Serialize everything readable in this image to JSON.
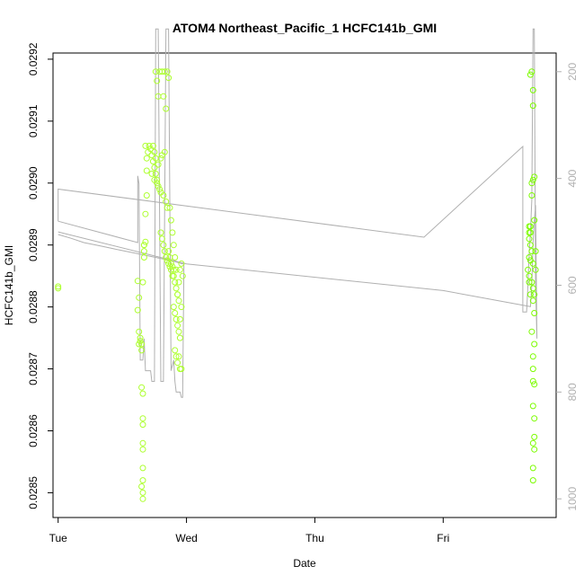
{
  "chart_data": {
    "type": "scatter",
    "title": "ATOM4 Northeast_Pacific_1 HCFC141b_GMI",
    "xlabel": "Date",
    "ylabel": "HCFC141b_GMI",
    "x_tick_labels": [
      "Tue",
      "Wed",
      "Thu",
      "Fri"
    ],
    "x_tick_values": [
      0,
      1,
      2,
      3
    ],
    "xlim": [
      -0.04,
      3.88
    ],
    "ylim": [
      0.02846,
      0.02921
    ],
    "y_ticks": [
      0.0285,
      0.0286,
      0.0287,
      0.0288,
      0.0289,
      0.029,
      0.0291,
      0.0292
    ],
    "right_axis": {
      "ylim": [
        1035,
        165
      ],
      "ticks": [
        200,
        400,
        600,
        800,
        1000
      ],
      "color": "#b0b0b0"
    },
    "colors": {
      "points": "#adff2f",
      "points_late": "#7cfc00",
      "line": "#b0b0b0",
      "axis": "#000000"
    },
    "grid": false,
    "series": [
      {
        "type": "points",
        "points": [
          [
            0.0,
            0.02883
          ],
          [
            0.0,
            0.028833
          ],
          [
            0.62,
            0.028842
          ],
          [
            0.62,
            0.028795
          ],
          [
            0.63,
            0.02876
          ],
          [
            0.64,
            0.02875
          ],
          [
            0.64,
            0.028745
          ],
          [
            0.63,
            0.02874
          ],
          [
            0.65,
            0.02873
          ],
          [
            0.65,
            0.02874
          ],
          [
            0.63,
            0.028815
          ],
          [
            0.66,
            0.02884
          ],
          [
            0.65,
            0.02867
          ],
          [
            0.66,
            0.02866
          ],
          [
            0.66,
            0.02862
          ],
          [
            0.66,
            0.02861
          ],
          [
            0.66,
            0.02858
          ],
          [
            0.66,
            0.02857
          ],
          [
            0.66,
            0.02854
          ],
          [
            0.66,
            0.02852
          ],
          [
            0.65,
            0.02851
          ],
          [
            0.66,
            0.0285
          ],
          [
            0.66,
            0.02849
          ],
          [
            0.67,
            0.02888
          ],
          [
            0.67,
            0.02889
          ],
          [
            0.67,
            0.0289
          ],
          [
            0.68,
            0.028905
          ],
          [
            0.67,
            0.0289
          ],
          [
            0.68,
            0.02895
          ],
          [
            0.69,
            0.02898
          ],
          [
            0.69,
            0.02902
          ],
          [
            0.69,
            0.02904
          ],
          [
            0.68,
            0.02906
          ],
          [
            0.7,
            0.02905
          ],
          [
            0.71,
            0.02906
          ],
          [
            0.72,
            0.029055
          ],
          [
            0.73,
            0.029045
          ],
          [
            0.74,
            0.029035
          ],
          [
            0.75,
            0.029025
          ],
          [
            0.76,
            0.029015
          ],
          [
            0.77,
            0.029005
          ],
          [
            0.78,
            0.028995
          ],
          [
            0.76,
            0.02918
          ],
          [
            0.77,
            0.029165
          ],
          [
            0.78,
            0.02914
          ],
          [
            0.79,
            0.02918
          ],
          [
            0.81,
            0.02918
          ],
          [
            0.82,
            0.02914
          ],
          [
            0.83,
            0.02918
          ],
          [
            0.84,
            0.02912
          ],
          [
            0.85,
            0.02918
          ],
          [
            0.86,
            0.02917
          ],
          [
            0.74,
            0.02906
          ],
          [
            0.75,
            0.02905
          ],
          [
            0.76,
            0.02904
          ],
          [
            0.78,
            0.02903
          ],
          [
            0.8,
            0.02904
          ],
          [
            0.81,
            0.029045
          ],
          [
            0.83,
            0.02905
          ],
          [
            0.73,
            0.029015
          ],
          [
            0.75,
            0.029005
          ],
          [
            0.77,
            0.029
          ],
          [
            0.79,
            0.02899
          ],
          [
            0.8,
            0.028985
          ],
          [
            0.82,
            0.02898
          ],
          [
            0.84,
            0.02897
          ],
          [
            0.85,
            0.02896
          ],
          [
            0.8,
            0.02892
          ],
          [
            0.81,
            0.02891
          ],
          [
            0.82,
            0.0289
          ],
          [
            0.83,
            0.02889
          ],
          [
            0.84,
            0.02888
          ],
          [
            0.85,
            0.028875
          ],
          [
            0.86,
            0.02887
          ],
          [
            0.87,
            0.028865
          ],
          [
            0.88,
            0.02886
          ],
          [
            0.89,
            0.02885
          ],
          [
            0.86,
            0.02889
          ],
          [
            0.87,
            0.02888
          ],
          [
            0.88,
            0.02887
          ],
          [
            0.89,
            0.028865
          ],
          [
            0.9,
            0.02886
          ],
          [
            0.9,
            0.02885
          ],
          [
            0.91,
            0.02884
          ],
          [
            0.92,
            0.02883
          ],
          [
            0.93,
            0.02882
          ],
          [
            0.94,
            0.02881
          ],
          [
            0.9,
            0.0288
          ],
          [
            0.91,
            0.02879
          ],
          [
            0.92,
            0.02878
          ],
          [
            0.93,
            0.02877
          ],
          [
            0.94,
            0.02876
          ],
          [
            0.95,
            0.02875
          ],
          [
            0.91,
            0.02873
          ],
          [
            0.92,
            0.02872
          ],
          [
            0.93,
            0.02871
          ],
          [
            0.95,
            0.0287
          ],
          [
            0.96,
            0.0287
          ],
          [
            0.94,
            0.02872
          ],
          [
            0.95,
            0.02878
          ],
          [
            0.96,
            0.0288
          ],
          [
            0.95,
            0.02886
          ],
          [
            0.96,
            0.02887
          ],
          [
            0.97,
            0.02885
          ],
          [
            0.94,
            0.02884
          ],
          [
            0.93,
            0.02882
          ],
          [
            0.92,
            0.02886
          ],
          [
            0.91,
            0.02888
          ],
          [
            0.9,
            0.0289
          ],
          [
            0.89,
            0.02892
          ],
          [
            0.88,
            0.02894
          ],
          [
            0.87,
            0.02896
          ]
        ]
      },
      {
        "type": "points",
        "points": [
          [
            3.68,
            0.029175
          ],
          [
            3.69,
            0.02918
          ],
          [
            3.7,
            0.02915
          ],
          [
            3.7,
            0.029125
          ],
          [
            3.7,
            0.029005
          ],
          [
            3.71,
            0.02901
          ],
          [
            3.69,
            0.02898
          ],
          [
            3.67,
            0.02893
          ],
          [
            3.67,
            0.02892
          ],
          [
            3.68,
            0.02893
          ],
          [
            3.69,
            0.029
          ],
          [
            3.68,
            0.02892
          ],
          [
            3.67,
            0.02891
          ],
          [
            3.68,
            0.0289
          ],
          [
            3.69,
            0.02889
          ],
          [
            3.67,
            0.02888
          ],
          [
            3.68,
            0.028875
          ],
          [
            3.7,
            0.02887
          ],
          [
            3.66,
            0.02886
          ],
          [
            3.67,
            0.02885
          ],
          [
            3.69,
            0.02884
          ],
          [
            3.7,
            0.02883
          ],
          [
            3.71,
            0.02882
          ],
          [
            3.67,
            0.02884
          ],
          [
            3.68,
            0.02882
          ],
          [
            3.7,
            0.02881
          ],
          [
            3.69,
            0.02876
          ],
          [
            3.71,
            0.02874
          ],
          [
            3.7,
            0.02872
          ],
          [
            3.7,
            0.0287
          ],
          [
            3.7,
            0.02868
          ],
          [
            3.71,
            0.028675
          ],
          [
            3.7,
            0.02864
          ],
          [
            3.71,
            0.02862
          ],
          [
            3.71,
            0.02859
          ],
          [
            3.7,
            0.02858
          ],
          [
            3.71,
            0.02857
          ],
          [
            3.7,
            0.02854
          ],
          [
            3.7,
            0.02852
          ],
          [
            3.71,
            0.02879
          ],
          [
            3.72,
            0.02886
          ],
          [
            3.71,
            0.02894
          ],
          [
            3.72,
            0.02889
          ]
        ]
      },
      {
        "type": "line",
        "axis": "right",
        "points": [
          [
            0.0,
            480
          ],
          [
            0.0,
            420
          ],
          [
            2.85,
            510
          ],
          [
            3.62,
            340
          ],
          [
            3.62,
            650
          ],
          [
            3.65,
            650
          ],
          [
            3.66,
            600
          ],
          [
            3.67,
            540
          ],
          [
            3.68,
            500
          ],
          [
            3.69,
            440
          ],
          [
            3.7,
            120
          ],
          [
            3.71,
            120
          ],
          [
            3.72,
            600
          ],
          [
            3.73,
            700
          ],
          [
            3.72,
            450
          ],
          [
            3.71,
            480
          ],
          [
            3.7,
            520
          ],
          [
            3.69,
            600
          ],
          [
            3.68,
            640
          ],
          [
            3.0,
            610
          ],
          [
            1.0,
            560
          ],
          [
            0.0,
            500
          ]
        ]
      },
      {
        "type": "line",
        "axis": "right",
        "points": [
          [
            0.0,
            480
          ],
          [
            0.62,
            520
          ],
          [
            0.62,
            395
          ],
          [
            0.63,
            410
          ],
          [
            0.64,
            740
          ],
          [
            0.66,
            740
          ],
          [
            0.67,
            700
          ],
          [
            0.68,
            760
          ],
          [
            0.7,
            760
          ],
          [
            0.72,
            760
          ],
          [
            0.73,
            780
          ],
          [
            0.75,
            780
          ],
          [
            0.76,
            120
          ],
          [
            0.78,
            120
          ],
          [
            0.8,
            780
          ],
          [
            0.82,
            780
          ],
          [
            0.84,
            120
          ],
          [
            0.86,
            120
          ],
          [
            0.88,
            760
          ],
          [
            0.9,
            740
          ],
          [
            0.91,
            780
          ],
          [
            0.92,
            800
          ],
          [
            0.95,
            800
          ],
          [
            0.96,
            810
          ],
          [
            0.97,
            810
          ],
          [
            0.98,
            560
          ],
          [
            0.97,
            560
          ],
          [
            0.9,
            555
          ],
          [
            0.8,
            550
          ],
          [
            0.7,
            545
          ],
          [
            0.6,
            540
          ],
          [
            0.5,
            535
          ],
          [
            0.4,
            530
          ],
          [
            0.3,
            525
          ],
          [
            0.2,
            520
          ],
          [
            0.1,
            512
          ],
          [
            0.0,
            505
          ]
        ]
      }
    ]
  }
}
